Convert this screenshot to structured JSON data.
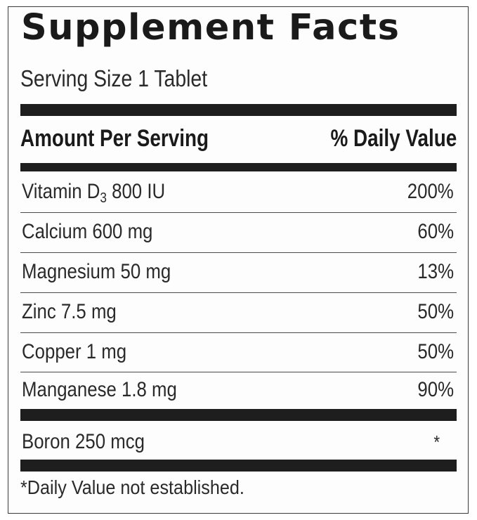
{
  "label": {
    "title": "Supplement Facts",
    "serving_size": "Serving Size 1 Tablet",
    "header_left": "Amount Per Serving",
    "header_right": "% Daily Value",
    "nutrients": [
      {
        "name_main": "Vitamin D",
        "name_sub": "3",
        "name_rest": " 800 IU",
        "dv": "200%"
      },
      {
        "name": "Calcium 600 mg",
        "dv": "60%"
      },
      {
        "name": "Magnesium 50 mg",
        "dv": "13%"
      },
      {
        "name": "Zinc 7.5 mg",
        "dv": "50%"
      },
      {
        "name": "Copper 1 mg",
        "dv": "50%"
      },
      {
        "name": "Manganese 1.8 mg",
        "dv": "90%"
      }
    ],
    "other": [
      {
        "name": "Boron 250 mcg",
        "dv": "*"
      }
    ],
    "footnote": "*Daily Value not established."
  },
  "colors": {
    "ink": "#1e1e1e",
    "text": "#2a2a2a",
    "background": "#fdfdfd"
  }
}
